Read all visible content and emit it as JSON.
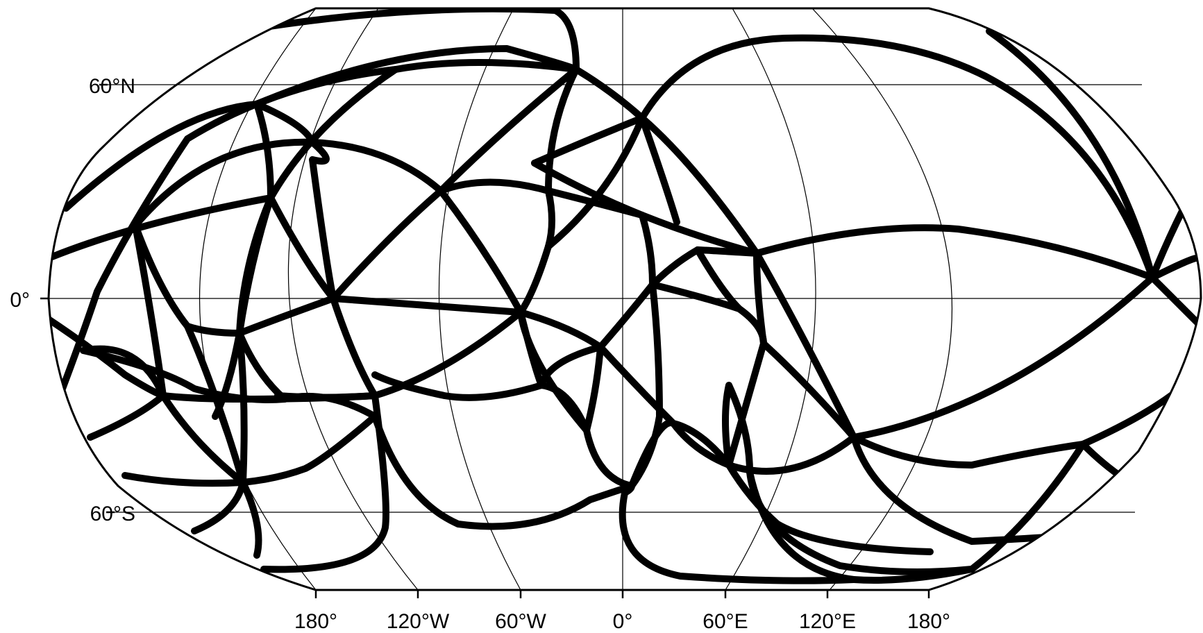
{
  "map": {
    "projection": "Robinson",
    "central_meridian_label": "0°",
    "graticule": {
      "line_color": "#000000",
      "frame_color": "#000000"
    },
    "track_color": "#000000",
    "lat_labels": [
      {
        "id": "lat-60n",
        "text": "60°N"
      },
      {
        "id": "lat-0",
        "text": "0°"
      },
      {
        "id": "lat-60s",
        "text": "60°S"
      }
    ],
    "lon_labels": [
      {
        "id": "lon-180w",
        "text": "180°"
      },
      {
        "id": "lon-120w",
        "text": "120°W"
      },
      {
        "id": "lon-60w",
        "text": "60°W"
      },
      {
        "id": "lon-0",
        "text": "0°"
      },
      {
        "id": "lon-60e",
        "text": "60°E"
      },
      {
        "id": "lon-120e",
        "text": "120°E"
      },
      {
        "id": "lon-180e",
        "text": "180°"
      }
    ]
  }
}
